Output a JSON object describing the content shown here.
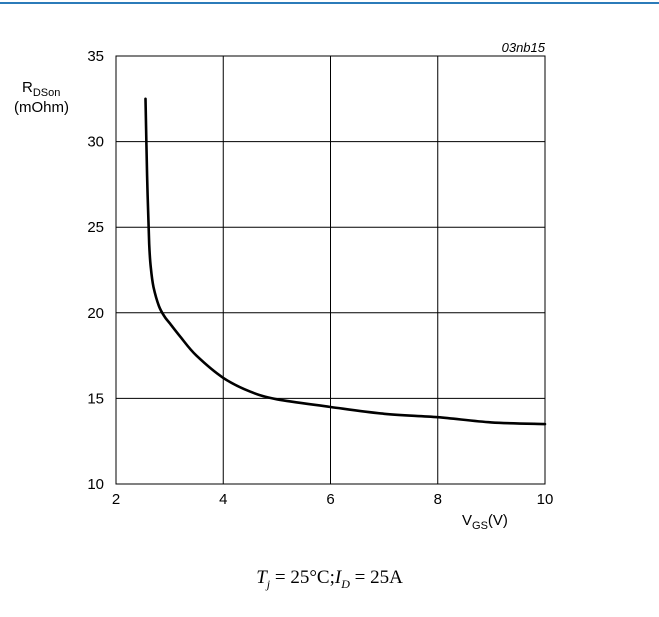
{
  "header": {
    "rule_color": "#2b7bb9"
  },
  "chart_data": {
    "type": "line",
    "code": "03nb15",
    "ylabel": {
      "main": "R",
      "sub": "DSon",
      "unit": "(mOhm)"
    },
    "xlabel": {
      "main": "V",
      "sub": "GS",
      "unit": "(V)"
    },
    "xlim": [
      2,
      10
    ],
    "ylim": [
      10,
      35
    ],
    "xticks": [
      2,
      4,
      6,
      8,
      10
    ],
    "yticks": [
      10,
      15,
      20,
      25,
      30,
      35
    ],
    "grid": true,
    "series": [
      {
        "color": "#000000",
        "x": [
          2.55,
          2.58,
          2.62,
          2.65,
          2.7,
          2.8,
          2.9,
          3.0,
          3.2,
          3.5,
          4.0,
          4.5,
          5.0,
          6.0,
          7.0,
          8.0,
          9.0,
          10.0
        ],
        "y": [
          32.5,
          28.0,
          24.0,
          22.6,
          21.5,
          20.4,
          19.8,
          19.4,
          18.6,
          17.5,
          16.2,
          15.4,
          14.95,
          14.5,
          14.1,
          13.9,
          13.6,
          13.5
        ]
      }
    ]
  },
  "caption": {
    "t": "T",
    "t_sub": "j",
    "t_value": " = 25°C;",
    "i": "I",
    "i_sub": "D",
    "i_value": " = 25A"
  }
}
